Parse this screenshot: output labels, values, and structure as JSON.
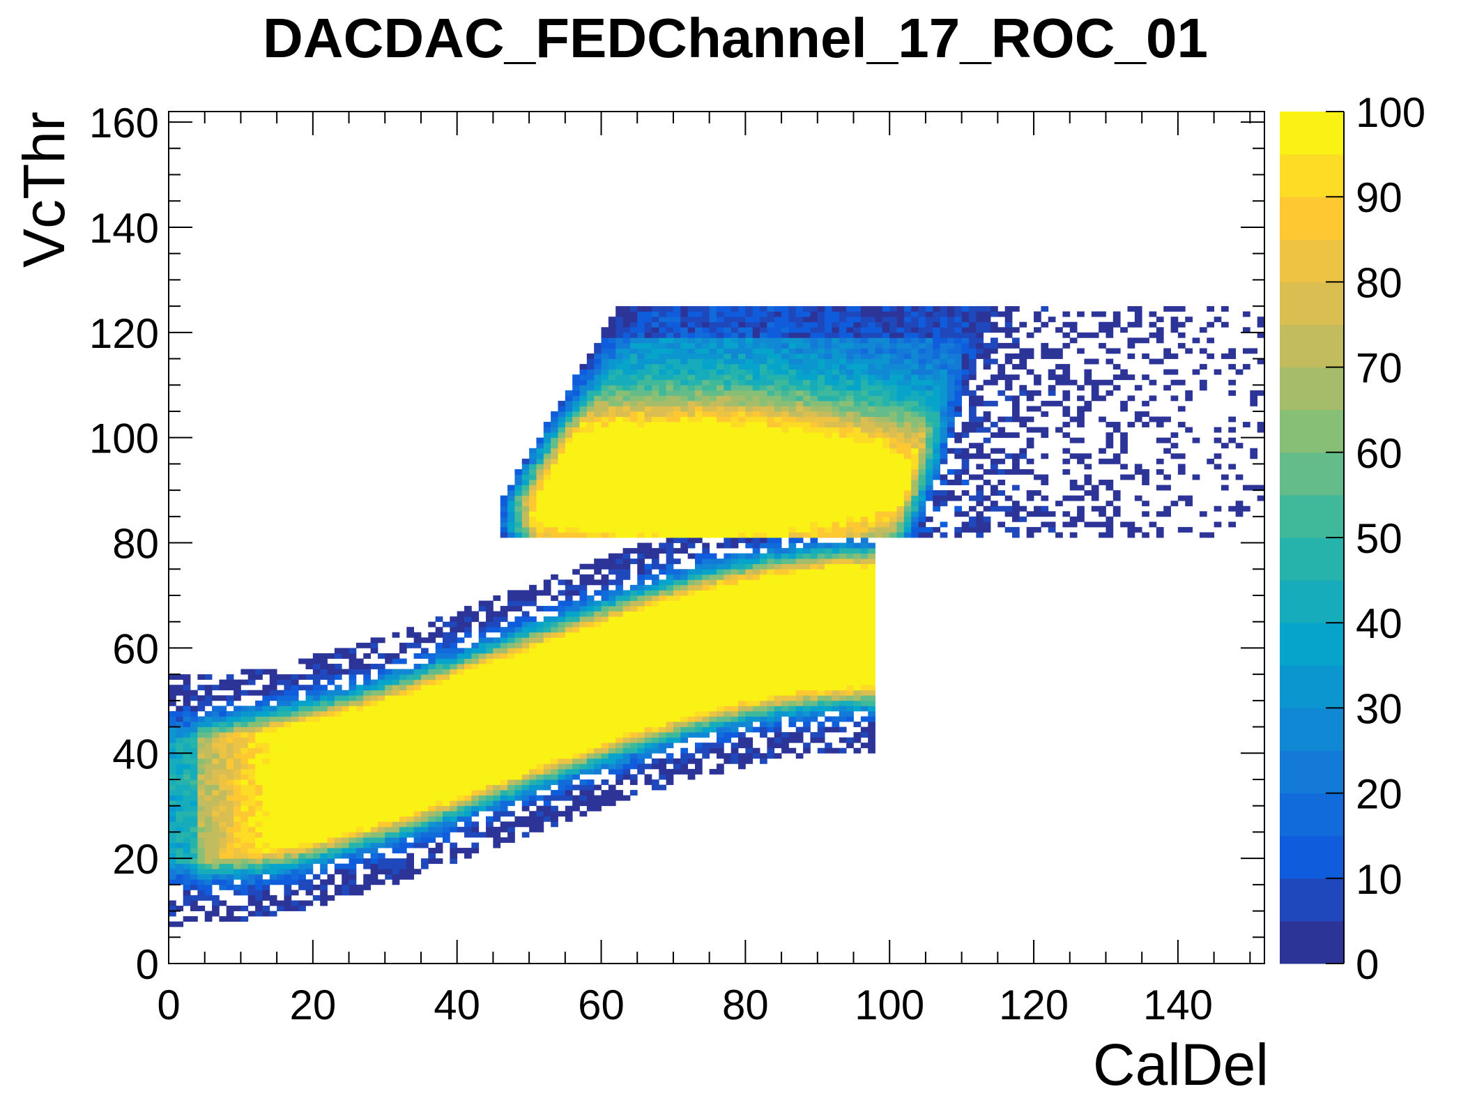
{
  "chart_data": {
    "type": "heatmap",
    "title": "DACDAC_FEDChannel_17_ROC_01",
    "xlabel": "CalDel",
    "ylabel": "VcThr",
    "xlim": [
      0,
      152
    ],
    "ylim": [
      0,
      162
    ],
    "x_ticks": [
      "0",
      "20",
      "40",
      "60",
      "80",
      "100",
      "120",
      "140"
    ],
    "y_ticks": [
      "0",
      "20",
      "40",
      "60",
      "80",
      "100",
      "120",
      "140",
      "160"
    ],
    "z_range": [
      0,
      100
    ],
    "z_ticks": [
      "0",
      "10",
      "20",
      "30",
      "40",
      "50",
      "60",
      "70",
      "80",
      "90",
      "100"
    ],
    "palette": "kBird",
    "description_of_distribution": {
      "lower_band": {
        "x_range": [
          0,
          98
        ],
        "y_center_at_x0": 31,
        "y_center_at_x97": 64,
        "saturated_value": 100,
        "upper_edge_clip_y": 81
      },
      "upper_band": {
        "x_range": [
          45,
          152
        ],
        "y_top": 124,
        "y_bottom": 81,
        "peak_center_y": 92,
        "peak_value": 100
      }
    },
    "grid": false,
    "legend": "colorbar-right"
  }
}
